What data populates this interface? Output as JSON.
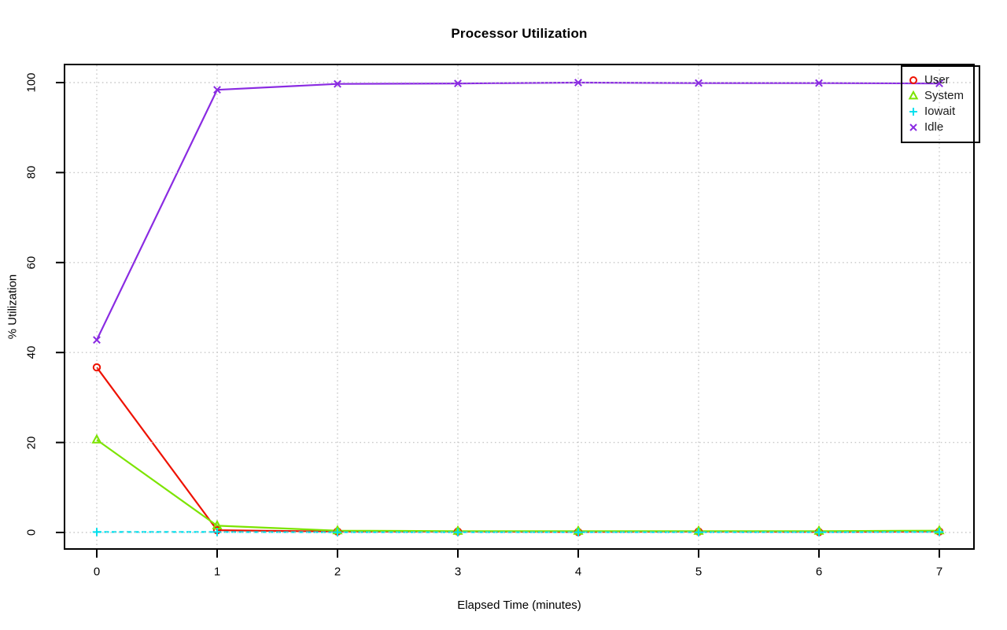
{
  "chart_data": {
    "type": "line",
    "title": "Processor Utilization",
    "xlabel": "Elapsed Time (minutes)",
    "ylabel": "% Utilization",
    "x": [
      0,
      1,
      2,
      3,
      4,
      5,
      6,
      7
    ],
    "x_tick_labels": [
      "0",
      "1",
      "2",
      "3",
      "4",
      "5",
      "6",
      "7"
    ],
    "y_ticks": [
      0,
      20,
      40,
      60,
      80,
      100
    ],
    "y_tick_labels": [
      "0",
      "20",
      "40",
      "60",
      "80",
      "100"
    ],
    "xlim": [
      -0.28,
      7.28
    ],
    "ylim": [
      -4,
      104
    ],
    "grid": true,
    "grid_style": "dotted",
    "legend_position": "top-right",
    "series": [
      {
        "name": "User",
        "color": "#ee1100",
        "marker": "open-circle",
        "line": "solid",
        "values": [
          36.7,
          0.5,
          0.2,
          0.2,
          0.1,
          0.2,
          0.1,
          0.2
        ]
      },
      {
        "name": "System",
        "color": "#7ce400",
        "marker": "open-triangle",
        "line": "solid",
        "values": [
          20.6,
          1.5,
          0.4,
          0.3,
          0.3,
          0.3,
          0.3,
          0.4
        ]
      },
      {
        "name": "Iowait",
        "color": "#00e0ee",
        "marker": "plus",
        "line": "dashed",
        "values": [
          0.1,
          0.1,
          0.05,
          0.05,
          0.05,
          0.05,
          0.05,
          0.1
        ]
      },
      {
        "name": "Idle",
        "color": "#8a2be2",
        "marker": "x-cross",
        "line": "solid",
        "values": [
          42.8,
          98.4,
          99.7,
          99.8,
          100,
          99.9,
          99.9,
          99.8
        ]
      }
    ],
    "colors": {
      "grid": "#c9c9c9",
      "axis": "#000000",
      "background": "#ffffff"
    }
  }
}
